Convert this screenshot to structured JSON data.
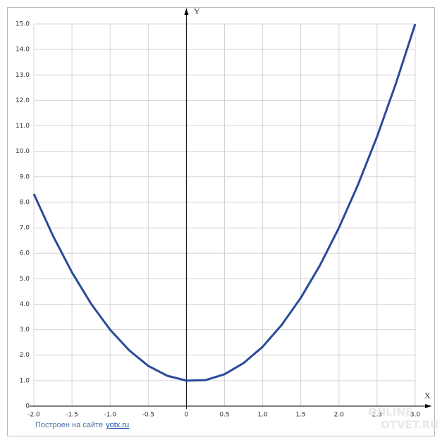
{
  "chart_data": {
    "type": "line",
    "x_label": "X",
    "y_label": "Y",
    "x": [
      -2,
      -1.75,
      -1.5,
      -1.25,
      -1,
      -0.75,
      -0.5,
      -0.25,
      0,
      0.25,
      0.5,
      0.75,
      1,
      1.25,
      1.5,
      1.75,
      2,
      2.25,
      2.5,
      2.75,
      3
    ],
    "series": [
      {
        "color": "#2b4a9a",
        "values": [
          8.33,
          6.69,
          5.25,
          4.02,
          3,
          2.19,
          1.58,
          1.19,
          1,
          1.02,
          1.25,
          1.69,
          2.33,
          3.19,
          4.25,
          5.52,
          7,
          8.69,
          10.58,
          12.69,
          15
        ]
      }
    ],
    "xlim": [
      -2,
      3
    ],
    "ylim": [
      0,
      15
    ],
    "xticks": [
      {
        "value": -2,
        "label": "-2.0"
      },
      {
        "value": -1.5,
        "label": "-1.5"
      },
      {
        "value": -1,
        "label": "-1.0"
      },
      {
        "value": -0.5,
        "label": "-0.5"
      },
      0,
      0.5,
      {
        "value": 1,
        "label": "1.0"
      },
      1.5,
      {
        "value": 2,
        "label": "2.0"
      },
      2.5,
      {
        "value": 3,
        "label": "3.0"
      }
    ],
    "yticks": [
      0,
      {
        "value": 1,
        "label": "1.0"
      },
      {
        "value": 2,
        "label": "2.0"
      },
      {
        "value": 3,
        "label": "3.0"
      },
      {
        "value": 4,
        "label": "4.0"
      },
      {
        "value": 5,
        "label": "5.0"
      },
      {
        "value": 6,
        "label": "6.0"
      },
      {
        "value": 7,
        "label": "7.0"
      },
      {
        "value": 8,
        "label": "8.0"
      },
      {
        "value": 9,
        "label": "9.0"
      },
      {
        "value": 10,
        "label": "10.0"
      },
      {
        "value": 11,
        "label": "11.0"
      },
      {
        "value": 12,
        "label": "12.0"
      },
      {
        "value": 13,
        "label": "13.0"
      },
      {
        "value": 14,
        "label": "14.0"
      },
      {
        "value": 15,
        "label": "15.0"
      }
    ],
    "grid": true
  },
  "footer": {
    "text": "Построен на сайте",
    "link": "yotx.ru"
  },
  "watermark": {
    "line1": "ONLINE",
    "line2": "OTVET.RU"
  }
}
